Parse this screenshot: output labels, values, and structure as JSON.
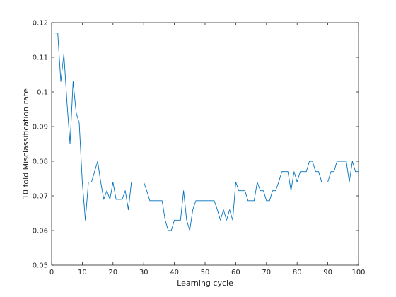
{
  "chart_data": {
    "type": "line",
    "title": "",
    "xlabel": "Learning cycle",
    "ylabel": "10 fold Misclassification rate",
    "xlim": [
      0,
      100
    ],
    "ylim": [
      0.05,
      0.12
    ],
    "xticks": [
      0,
      10,
      20,
      30,
      40,
      50,
      60,
      70,
      80,
      90,
      100
    ],
    "yticks": [
      0.05,
      0.06,
      0.07,
      0.08,
      0.09,
      0.1,
      0.11,
      0.12
    ],
    "xtick_labels": [
      "0",
      "10",
      "20",
      "30",
      "40",
      "50",
      "60",
      "70",
      "80",
      "90",
      "100"
    ],
    "ytick_labels": [
      "0.05",
      "0.06",
      "0.07",
      "0.08",
      "0.09",
      "0.1",
      "0.11",
      "0.12"
    ],
    "grid": false,
    "legend": "none",
    "line_color": "#0072bd",
    "series": [
      {
        "x": [
          1,
          2,
          3,
          4,
          5,
          6,
          7,
          8,
          9,
          10,
          11,
          12,
          13,
          14,
          15,
          16,
          17,
          18,
          19,
          20,
          21,
          22,
          23,
          24,
          25,
          26,
          27,
          28,
          29,
          30,
          31,
          32,
          33,
          34,
          35,
          36,
          37,
          38,
          39,
          40,
          41,
          42,
          43,
          44,
          45,
          46,
          47,
          48,
          49,
          50,
          51,
          52,
          53,
          54,
          55,
          56,
          57,
          58,
          59,
          60,
          61,
          62,
          63,
          64,
          65,
          66,
          67,
          68,
          69,
          70,
          71,
          72,
          73,
          74,
          75,
          76,
          77,
          78,
          79,
          80,
          81,
          82,
          83,
          84,
          85,
          86,
          87,
          88,
          89,
          90,
          91,
          92,
          93,
          94,
          95,
          96,
          97,
          98,
          99,
          100
        ],
        "values": [
          0.117,
          0.117,
          0.103,
          0.111,
          0.097,
          0.085,
          0.103,
          0.094,
          0.091,
          0.074,
          0.063,
          0.074,
          0.074,
          0.077,
          0.08,
          0.074,
          0.069,
          0.0715,
          0.069,
          0.074,
          0.069,
          0.069,
          0.069,
          0.0715,
          0.066,
          0.074,
          0.074,
          0.074,
          0.074,
          0.074,
          0.0715,
          0.0686,
          0.0686,
          0.0686,
          0.0686,
          0.0686,
          0.063,
          0.06,
          0.06,
          0.063,
          0.063,
          0.063,
          0.0715,
          0.063,
          0.06,
          0.066,
          0.0686,
          0.0686,
          0.0686,
          0.0686,
          0.0686,
          0.0686,
          0.0686,
          0.066,
          0.063,
          0.066,
          0.063,
          0.066,
          0.063,
          0.074,
          0.0715,
          0.0715,
          0.0715,
          0.0686,
          0.0686,
          0.0686,
          0.074,
          0.0715,
          0.0715,
          0.0686,
          0.0686,
          0.0715,
          0.0715,
          0.074,
          0.077,
          0.077,
          0.077,
          0.0715,
          0.077,
          0.074,
          0.077,
          0.077,
          0.077,
          0.08,
          0.08,
          0.077,
          0.077,
          0.074,
          0.074,
          0.074,
          0.077,
          0.077,
          0.08,
          0.08,
          0.08,
          0.08,
          0.074,
          0.08,
          0.077,
          0.077
        ]
      }
    ]
  }
}
